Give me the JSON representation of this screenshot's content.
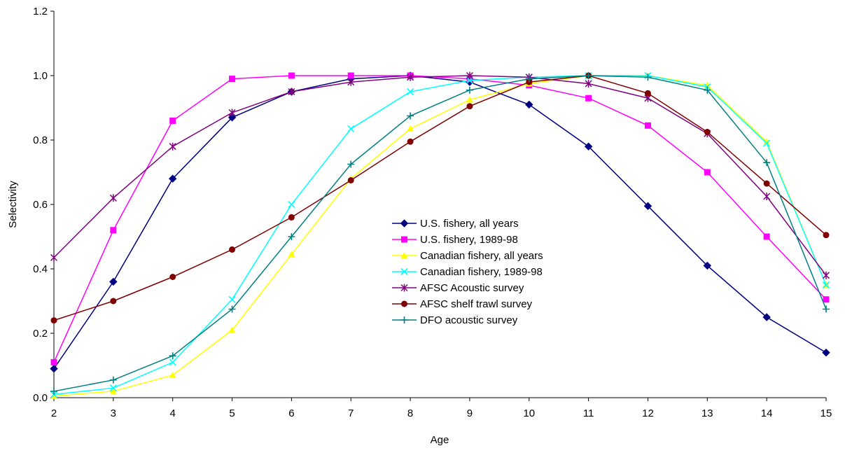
{
  "chart_data": {
    "type": "line",
    "title": "",
    "xlabel": "Age",
    "ylabel": "Selectivity",
    "x": [
      2,
      3,
      4,
      5,
      6,
      7,
      8,
      9,
      10,
      11,
      12,
      13,
      14,
      15
    ],
    "xlim": [
      2,
      15
    ],
    "ylim": [
      0,
      1.2
    ],
    "y_ticks": [
      "0.0",
      "0.2",
      "0.4",
      "0.6",
      "0.8",
      "1.0",
      "1.2"
    ],
    "x_ticks": [
      "2",
      "3",
      "4",
      "5",
      "6",
      "7",
      "8",
      "9",
      "10",
      "11",
      "12",
      "13",
      "14",
      "15"
    ],
    "grid": false,
    "legend_position": "center",
    "series": [
      {
        "name": "U.S. fishery, all years",
        "color": "#000080",
        "marker": "diamond",
        "values": [
          0.09,
          0.36,
          0.68,
          0.87,
          0.95,
          0.99,
          1.0,
          0.98,
          0.91,
          0.78,
          0.595,
          0.41,
          0.25,
          0.14
        ]
      },
      {
        "name": "U.S. fishery, 1989-98",
        "color": "#FF00FF",
        "marker": "square",
        "values": [
          0.11,
          0.52,
          0.86,
          0.99,
          1.0,
          1.0,
          1.0,
          0.99,
          0.97,
          0.93,
          0.845,
          0.7,
          0.5,
          0.305
        ]
      },
      {
        "name": "Canadian fishery, all years",
        "color": "#FFFF00",
        "marker": "triangle",
        "values": [
          0.005,
          0.02,
          0.07,
          0.21,
          0.445,
          0.68,
          0.835,
          0.925,
          0.975,
          1.0,
          1.0,
          0.97,
          0.795,
          0.35
        ]
      },
      {
        "name": "Canadian fishery, 1989-98",
        "color": "#00FFFF",
        "marker": "x",
        "values": [
          0.01,
          0.03,
          0.11,
          0.305,
          0.6,
          0.835,
          0.95,
          0.985,
          0.995,
          1.0,
          1.0,
          0.965,
          0.79,
          0.35
        ]
      },
      {
        "name": "AFSC Acoustic survey",
        "color": "#800080",
        "marker": "star",
        "values": [
          0.435,
          0.62,
          0.78,
          0.885,
          0.95,
          0.98,
          0.995,
          1.0,
          0.995,
          0.975,
          0.93,
          0.82,
          0.625,
          0.38
        ]
      },
      {
        "name": "AFSC shelf trawl survey",
        "color": "#800000",
        "marker": "circle",
        "values": [
          0.24,
          0.3,
          0.375,
          0.46,
          0.56,
          0.675,
          0.795,
          0.905,
          0.98,
          1.0,
          0.945,
          0.825,
          0.665,
          0.505
        ]
      },
      {
        "name": "DFO acoustic survey",
        "color": "#008080",
        "marker": "plus",
        "values": [
          0.02,
          0.055,
          0.13,
          0.275,
          0.5,
          0.725,
          0.875,
          0.955,
          0.99,
          1.0,
          0.995,
          0.955,
          0.73,
          0.275
        ]
      }
    ]
  }
}
